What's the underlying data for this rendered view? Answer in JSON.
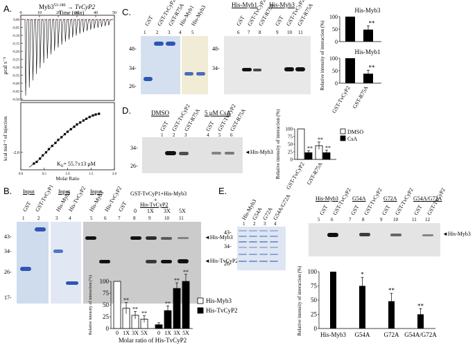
{
  "panels": {
    "A": {
      "letter": "A.",
      "title_prefix": "Myb3",
      "title_sup": "53-180",
      "title_arrow": "→",
      "title_target": "TvCyP2",
      "top_xlabel": "Time (min)",
      "top_xticks": [
        "0",
        "10",
        "20",
        "30",
        "40",
        "50"
      ],
      "top_ylabel": "μcal s⁻¹",
      "top_yticks": [
        "0.00",
        "-0.05",
        "-0.10",
        "-0.15",
        "-0.20",
        "-0.25",
        "-0.30",
        "-0.35",
        "-0.40",
        "-0.45",
        "-0.50"
      ],
      "bottom_ylabel": "kcal mol⁻¹ of injection",
      "bottom_yticks": [
        "-2.0"
      ],
      "bottom_xlabel": "Molar Ratio",
      "bottom_xticks": [
        "0.0",
        "0.5",
        "1.0",
        "1.5",
        "2.0"
      ],
      "kd_label": "K",
      "kd_sub": "D",
      "kd_value": "= 55.7±13 μM"
    },
    "B": {
      "letter": "B.",
      "input_labels": [
        "Input",
        "Input",
        "Input"
      ],
      "gel_labels": [
        "GST",
        "GST-TvCyP1",
        "His-Myb3",
        "His-TvCyP2",
        "His-Myb3",
        "His-TvCyP2",
        "GST",
        "GST-TvCyP1+His-Myb3"
      ],
      "lanes": [
        "1",
        "2",
        "3",
        "4",
        "5",
        "6",
        "7",
        "8",
        "9",
        "10",
        "11"
      ],
      "titration_header": "GST-TvCyP1+His-Myb3",
      "plus": "+",
      "titration_sub": "His-TvCyP2",
      "titration_ratios": [
        "0",
        "1X",
        "3X",
        "5X"
      ],
      "mw_markers": [
        "43-",
        "34-",
        "26-",
        "17-"
      ],
      "band_labels": [
        "◄His-Myb3",
        "◄His-TvCyP2"
      ],
      "chart_ylabel": "Relative intensity of interaction (%)",
      "chart_xlabel": "Molar ratio of His-TvCyP2"
    },
    "C": {
      "letter": "C.",
      "lane_labels_left": [
        "GST",
        "GST-TvCyP2",
        "GST-R75A",
        "His-Myb1",
        "His-Myb3"
      ],
      "lanes_left": [
        "1",
        "2",
        "3",
        "4",
        "5"
      ],
      "header_myb1": "His-Myb1",
      "header_myb3": "His-Myb3",
      "lane_labels_right": [
        "GST",
        "GST-TvCyP2",
        "GST-R75A",
        "GST",
        "GST-TvCyP2",
        "GST-R75A"
      ],
      "lanes_right": [
        "6",
        "7",
        "8",
        "9",
        "10",
        "11"
      ],
      "mw_left": [
        "48-",
        "34-",
        "26-"
      ],
      "mw_right": [
        "48-",
        "34-"
      ],
      "chart_ylabel": "Relative intensity of interaction (%)",
      "chart_xlabels": [
        "GST-TvCyP2",
        "GST-R75A"
      ]
    },
    "D": {
      "letter": "D.",
      "cond_dmso": "DMSO",
      "cond_csa": "5 μM CsA",
      "lane_labels": [
        "GST",
        "GST-TvCyP2",
        "GST-R75A",
        "GST",
        "GST-TvCyP2",
        "GST-R75A"
      ],
      "lanes": [
        "1",
        "2",
        "3",
        "4",
        "5",
        "6"
      ],
      "mw": [
        "34-",
        "26-"
      ],
      "band_label": "◄His-Myb3",
      "chart_ylabel": "Relative intensity of interaction (%)",
      "chart_xlabels": [
        "GST-TvCyP2",
        "GST-R75A"
      ]
    },
    "E": {
      "letter": "E.",
      "left_labels": [
        "His-Myb3",
        "G54A",
        "G72A",
        "G54A/G72A"
      ],
      "left_lanes": [
        "1",
        "2",
        "3",
        "4"
      ],
      "mw": [
        "43-",
        "34-",
        "26-"
      ],
      "groups": [
        "His-Myb3",
        "G54A",
        "G72A",
        "G54A/G72A"
      ],
      "right_labels": [
        "GST",
        "GST-TvCyP2",
        "GST",
        "GST-TvCyP2",
        "GST",
        "GST-TvCyP2",
        "GST",
        "GST-TvCyP2"
      ],
      "right_lanes": [
        "5",
        "6",
        "7",
        "8",
        "9",
        "10",
        "11",
        "12"
      ],
      "band_label": "◄His-Myb3",
      "chart_ylabel": "Relative intensity of interaction (%)"
    }
  },
  "chart_data": [
    {
      "id": "B-bar",
      "type": "bar",
      "title": "",
      "xlabel": "Molar ratio of His-TvCyP2",
      "ylabel": "Relative intensity of interaction (%)",
      "ylim": [
        0,
        100
      ],
      "yticks": [
        "0",
        "25",
        "50",
        "75",
        "100"
      ],
      "categories": [
        "0",
        "1X",
        "3X",
        "5X"
      ],
      "legend_position": "right",
      "series": [
        {
          "name": "His-Myb3",
          "color": "#ffffff",
          "values": [
            100,
            43,
            28,
            20
          ],
          "errors": [
            0,
            12,
            8,
            7
          ],
          "labels": [
            "",
            "**",
            "**",
            "**"
          ]
        },
        {
          "name": "His-TvCyP2",
          "color": "#000000",
          "values": [
            8,
            38,
            85,
            100
          ],
          "errors": [
            4,
            10,
            12,
            15
          ],
          "labels": [
            "",
            "**",
            "**",
            "**"
          ]
        }
      ]
    },
    {
      "id": "C-bar-myb3",
      "type": "bar",
      "title": "His-Myb3",
      "ylabel": "Relative intensity of interaction (%)",
      "ylim": [
        0,
        100
      ],
      "yticks": [
        "0",
        "50",
        "100"
      ],
      "categories": [
        "GST-TvCyP2",
        "GST-R75A"
      ],
      "series": [
        {
          "name": "His-Myb3",
          "color": "#000000",
          "values": [
            100,
            48
          ],
          "errors": [
            0,
            15
          ],
          "labels": [
            "",
            "**"
          ]
        }
      ]
    },
    {
      "id": "C-bar-myb1",
      "type": "bar",
      "title": "His-Myb1",
      "ylabel": "Relative intensity of interaction (%)",
      "ylim": [
        0,
        100
      ],
      "yticks": [
        "0",
        "50",
        "100"
      ],
      "categories": [
        "GST-TvCyP2",
        "GST-R75A"
      ],
      "series": [
        {
          "name": "His-Myb1",
          "color": "#000000",
          "values": [
            100,
            38
          ],
          "errors": [
            0,
            14
          ],
          "labels": [
            "",
            "**"
          ]
        }
      ]
    },
    {
      "id": "D-bar",
      "type": "bar",
      "title": "",
      "ylabel": "Relative intensity of interaction (%)",
      "ylim": [
        0,
        100
      ],
      "yticks": [
        "0",
        "25",
        "50",
        "75",
        "100"
      ],
      "categories": [
        "GST-TvCyP2",
        "GST-R75A"
      ],
      "legend_position": "top-right",
      "series": [
        {
          "name": "DMSO",
          "color": "#ffffff",
          "values": [
            100,
            45
          ],
          "errors": [
            0,
            12
          ],
          "labels": [
            "",
            "**"
          ]
        },
        {
          "name": "CsA",
          "color": "#000000",
          "values": [
            22,
            22
          ],
          "errors": [
            6,
            8
          ],
          "labels": [
            "**",
            "**"
          ]
        }
      ]
    },
    {
      "id": "E-bar",
      "type": "bar",
      "title": "",
      "ylabel": "Relative intensity of interaction (%)",
      "ylim": [
        0,
        100
      ],
      "yticks": [
        "0",
        "25",
        "50",
        "75",
        "100"
      ],
      "categories": [
        "His-Myb3",
        "G54A",
        "G72A",
        "G54A/G72A"
      ],
      "series": [
        {
          "name": "His-Myb3",
          "color": "#000000",
          "values": [
            100,
            75,
            48,
            25
          ],
          "errors": [
            0,
            15,
            14,
            10
          ],
          "labels": [
            "",
            "*",
            "**",
            "**"
          ]
        }
      ]
    },
    {
      "id": "A-itc",
      "type": "scatter",
      "title": "Myb3 53-180 → TvCyP2",
      "xlabel": "Molar Ratio",
      "ylabel": "kcal mol⁻¹ of injection",
      "xlim": [
        0,
        2.0
      ],
      "ylim": [
        -2.7,
        0
      ],
      "x": [
        0.28,
        0.34,
        0.41,
        0.47,
        0.54,
        0.6,
        0.67,
        0.74,
        0.8,
        0.87,
        0.94,
        1.0,
        1.07,
        1.14,
        1.2,
        1.27,
        1.34,
        1.4,
        1.47,
        1.54,
        1.6,
        1.67
      ],
      "y": [
        -2.45,
        -2.38,
        -2.25,
        -2.12,
        -2.0,
        -1.87,
        -1.74,
        -1.62,
        -1.5,
        -1.39,
        -1.27,
        -1.17,
        -1.07,
        -0.97,
        -0.88,
        -0.8,
        -0.72,
        -0.65,
        -0.58,
        -0.52,
        -0.48,
        -0.45
      ]
    }
  ]
}
